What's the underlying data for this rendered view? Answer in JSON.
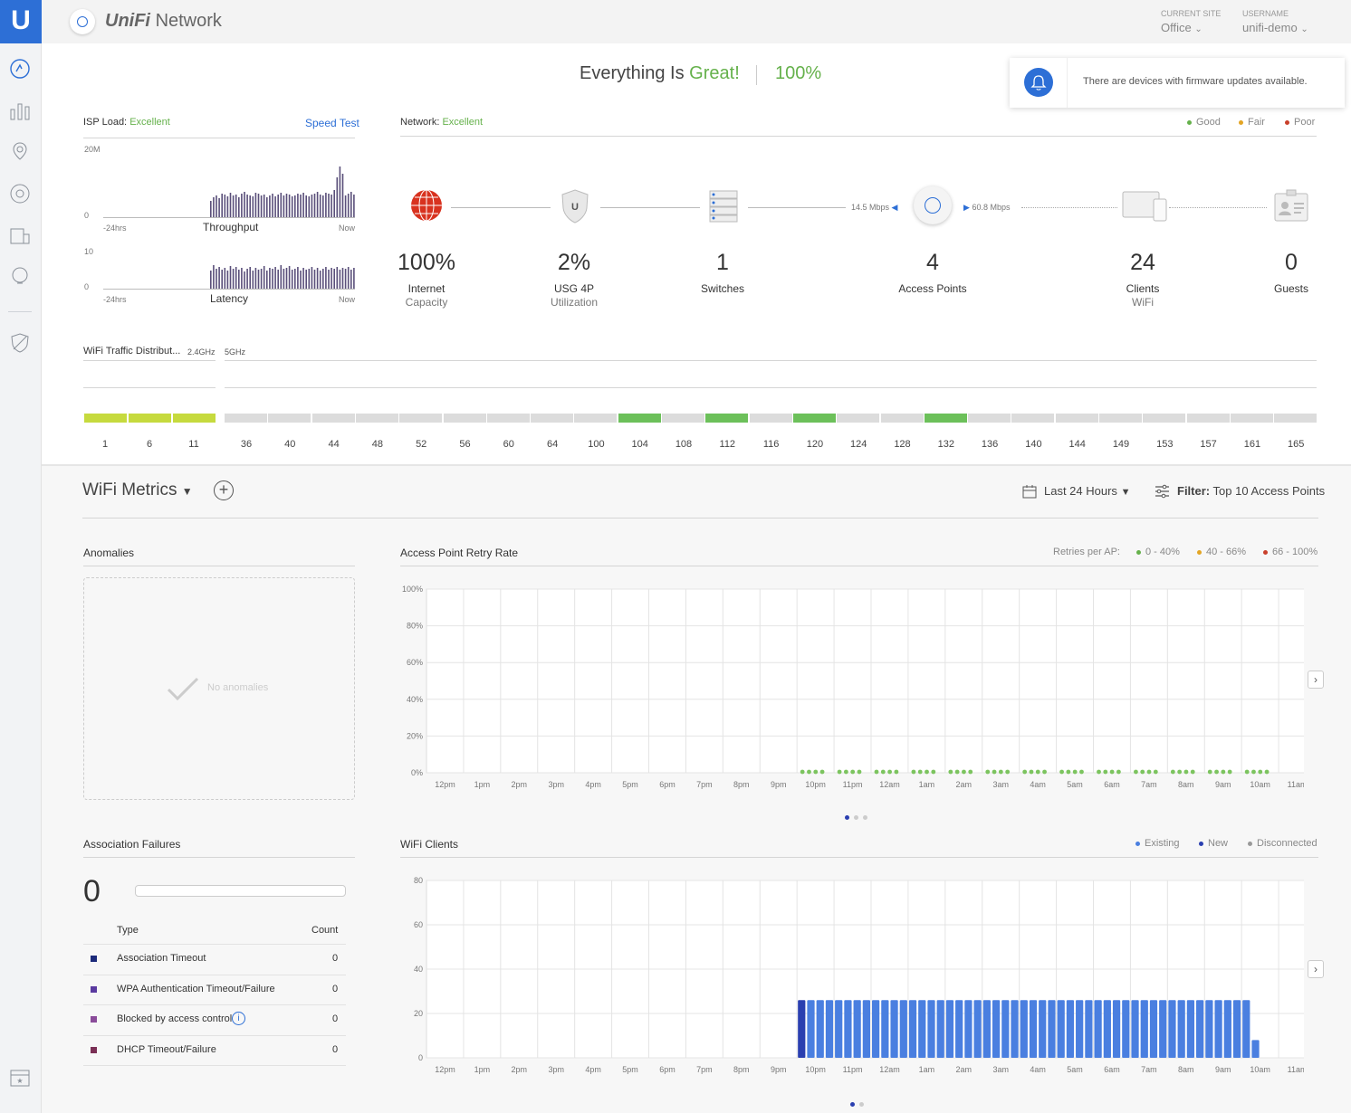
{
  "app": {
    "title": "Network",
    "brand": "UniFi"
  },
  "header": {
    "site_label": "CURRENT SITE",
    "site_value": "Office",
    "user_label": "USERNAME",
    "user_value": "unifi-demo"
  },
  "status": {
    "prefix": "Everything Is",
    "word": "Great!",
    "percent": "100%"
  },
  "notification": {
    "text": "There are devices with firmware updates available."
  },
  "isp": {
    "label": "ISP Load:",
    "value": "Excellent",
    "speed_test": "Speed Test",
    "throughput": {
      "ymax": "20M",
      "ymin": "0",
      "start": "-24hrs",
      "end": "Now",
      "title": "Throughput"
    },
    "latency": {
      "ymax": "10",
      "ymin": "0",
      "start": "-24hrs",
      "end": "Now",
      "title": "Latency"
    }
  },
  "network": {
    "label": "Network:",
    "value": "Excellent",
    "legend": [
      "Good",
      "Fair",
      "Poor"
    ],
    "legend_colors": [
      "#65b14b",
      "#e3a524",
      "#c9402b"
    ],
    "down_rate": "14.5 Mbps",
    "up_rate": "60.8 Mbps",
    "stats": [
      {
        "value": "100%",
        "label": "Internet",
        "sub": "Capacity"
      },
      {
        "value": "2%",
        "label": "USG 4P",
        "sub": "Utilization"
      },
      {
        "value": "1",
        "label": "Switches",
        "sub": ""
      },
      {
        "value": "4",
        "label": "Access Points",
        "sub": ""
      },
      {
        "value": "24",
        "label": "Clients",
        "sub": "WiFi"
      },
      {
        "value": "0",
        "label": "Guests",
        "sub": ""
      }
    ]
  },
  "wifi_traffic": {
    "title": "WiFi Traffic Distribut...",
    "band24": "2.4GHz",
    "band5": "5GHz",
    "channels24": [
      "1",
      "6",
      "11"
    ],
    "channels5": [
      "36",
      "40",
      "44",
      "48",
      "52",
      "56",
      "60",
      "64",
      "100",
      "104",
      "108",
      "112",
      "116",
      "120",
      "124",
      "128",
      "132",
      "136",
      "140",
      "144",
      "149",
      "153",
      "157",
      "161",
      "165"
    ],
    "active5": [
      "104",
      "112",
      "120",
      "132"
    ]
  },
  "metrics": {
    "title": "WiFi Metrics",
    "range": "Last 24 Hours",
    "filter_label": "Filter:",
    "filter_value": "Top 10 Access Points"
  },
  "anomalies": {
    "title": "Anomalies",
    "empty": "No anomalies"
  },
  "retry": {
    "title": "Access Point Retry Rate",
    "legend_title": "Retries per AP:",
    "legend": [
      "0 - 40%",
      "40 - 66%",
      "66 - 100%"
    ],
    "legend_colors": [
      "#65b14b",
      "#e3a524",
      "#c9402b"
    ]
  },
  "assoc": {
    "title": "Association Failures",
    "count": "0",
    "col_type": "Type",
    "col_count": "Count",
    "rows": [
      {
        "type": "Association Timeout",
        "count": "0",
        "color": "#1c2a7a"
      },
      {
        "type": "WPA Authentication Timeout/Failure",
        "count": "0",
        "color": "#5a3aa0"
      },
      {
        "type": "Blocked by access control",
        "count": "0",
        "color": "#8a4c9a"
      },
      {
        "type": "DHCP Timeout/Failure",
        "count": "0",
        "color": "#7a2f55"
      }
    ]
  },
  "clients": {
    "title": "WiFi Clients",
    "legend": [
      "Existing",
      "New",
      "Disconnected"
    ],
    "legend_colors": [
      "#4a7fe0",
      "#2a3fb0",
      "#999999"
    ]
  },
  "chart_data": [
    {
      "type": "scatter",
      "title": "Access Point Retry Rate",
      "x": [
        "12pm",
        "1pm",
        "2pm",
        "3pm",
        "4pm",
        "5pm",
        "6pm",
        "7pm",
        "8pm",
        "9pm",
        "10pm",
        "11pm",
        "12am",
        "1am",
        "2am",
        "3am",
        "4am",
        "5am",
        "6am",
        "7am",
        "8am",
        "9am",
        "10am",
        "11am"
      ],
      "yticks": [
        "0%",
        "20%",
        "40%",
        "60%",
        "80%",
        "100%"
      ],
      "ylim": [
        0,
        100
      ],
      "series": [
        {
          "name": "0 - 40%",
          "points_per_hour": 4,
          "first_hour_index": 10,
          "last_hour_index": 22,
          "value": 0
        }
      ]
    },
    {
      "type": "bar",
      "title": "WiFi Clients",
      "x": [
        "12pm",
        "1pm",
        "2pm",
        "3pm",
        "4pm",
        "5pm",
        "6pm",
        "7pm",
        "8pm",
        "9pm",
        "10pm",
        "11pm",
        "12am",
        "1am",
        "2am",
        "3am",
        "4am",
        "5am",
        "6am",
        "7am",
        "8am",
        "9am",
        "10am",
        "11am"
      ],
      "yticks": [
        "0",
        "20",
        "40",
        "60",
        "80"
      ],
      "ylim": [
        0,
        80
      ],
      "series": [
        {
          "name": "Existing",
          "start_hour_index": 10,
          "bars_per_hour": 4,
          "count": 50,
          "value": 26,
          "last_value": 8
        },
        {
          "name": "New",
          "first_bar_value": 26
        }
      ]
    }
  ]
}
